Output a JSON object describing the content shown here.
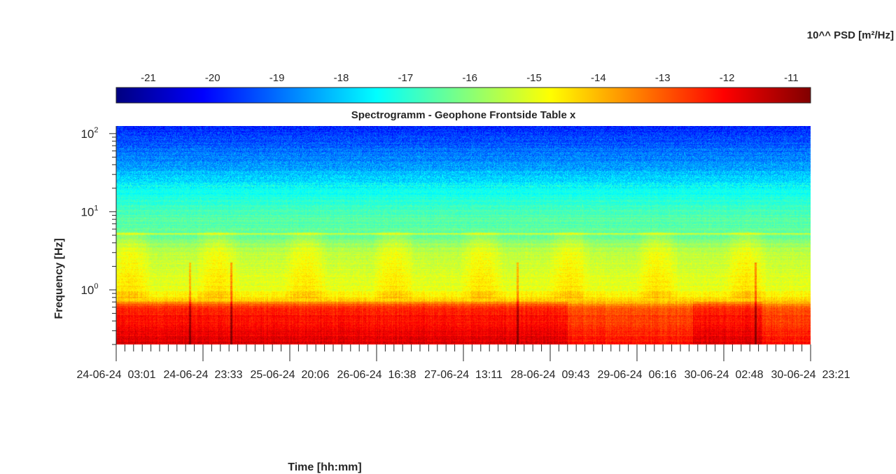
{
  "chart_data": {
    "type": "heatmap",
    "title": "Spectrogramm - Geophone Frontside Table x",
    "xlabel": "Time [hh:mm]",
    "ylabel": "Frequency [Hz]",
    "y_scale": "log",
    "ylim": [
      0.2,
      125
    ],
    "y_ticks": [
      {
        "value": 100,
        "base": "10",
        "exp": "2"
      },
      {
        "value": 10,
        "base": "10",
        "exp": "1"
      },
      {
        "value": 1,
        "base": "10",
        "exp": "0"
      }
    ],
    "x_tick_labels": [
      "24-06-24  03:01",
      "24-06-24  23:33",
      "25-06-24  20:06",
      "26-06-24  16:38",
      "27-06-24  13:11",
      "28-06-24  09:43",
      "29-06-24  06:16",
      "30-06-24  02:48",
      "30-06-24  23:21"
    ],
    "colorbar": {
      "label": "10^^ PSD [m²/Hz]",
      "range": [
        -21.5,
        -10.7
      ],
      "ticks": [
        -21,
        -20,
        -19,
        -18,
        -17,
        -16,
        -15,
        -14,
        -13,
        -12,
        -11
      ],
      "tick_labels": [
        "-21",
        "-20",
        "-19",
        "-18",
        "-17",
        "-16",
        "-15",
        "-14",
        "-13",
        "-12",
        "-11"
      ],
      "colormap": "jet"
    },
    "psd_profile_log10": [
      {
        "frequency_hz": 0.2,
        "psd": -11.7
      },
      {
        "frequency_hz": 0.6,
        "psd": -12.4
      },
      {
        "frequency_hz": 0.75,
        "psd": -14.2
      },
      {
        "frequency_hz": 1.0,
        "psd": -15.0
      },
      {
        "frequency_hz": 3.0,
        "psd": -15.4
      },
      {
        "frequency_hz": 5.0,
        "psd": -16.3
      },
      {
        "frequency_hz": 10.0,
        "psd": -16.7
      },
      {
        "frequency_hz": 20.0,
        "psd": -17.4
      },
      {
        "frequency_hz": 40.0,
        "psd": -18.5
      },
      {
        "frequency_hz": 125.0,
        "psd": -19.8
      }
    ]
  }
}
